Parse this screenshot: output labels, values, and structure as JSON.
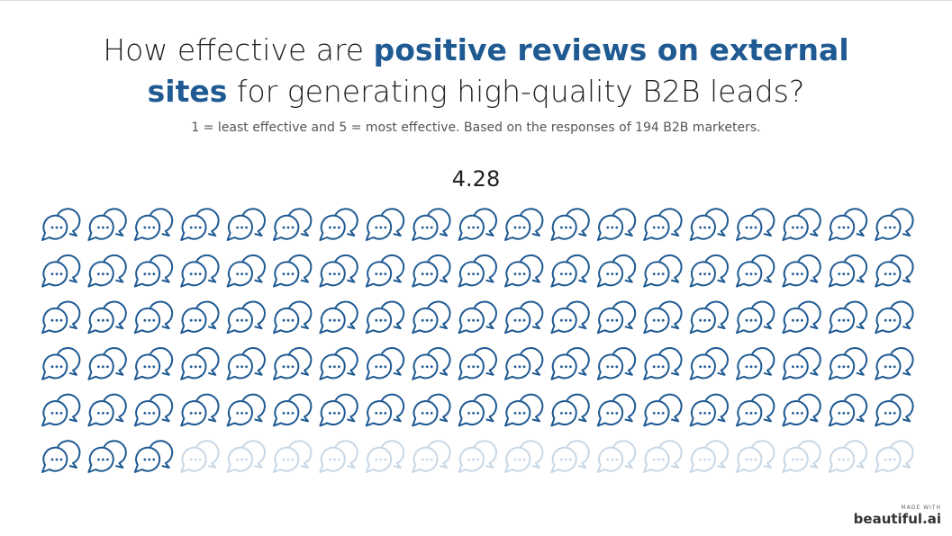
{
  "chart_data": {
    "type": "pictograph",
    "title_parts": [
      "How effective are ",
      "positive reviews on external sites",
      " for generating high-quality B2B leads?"
    ],
    "subtitle": "1 = least effective and 5 = most effective. Based on the responses of 194 B2B marketers.",
    "value": 4.28,
    "value_label": "4.28",
    "max": 5,
    "color": "#1f5a93",
    "empty_color": "#c8d7e6"
  },
  "branding": {
    "made_with": "MADE WITH",
    "name": "beautiful.ai"
  }
}
